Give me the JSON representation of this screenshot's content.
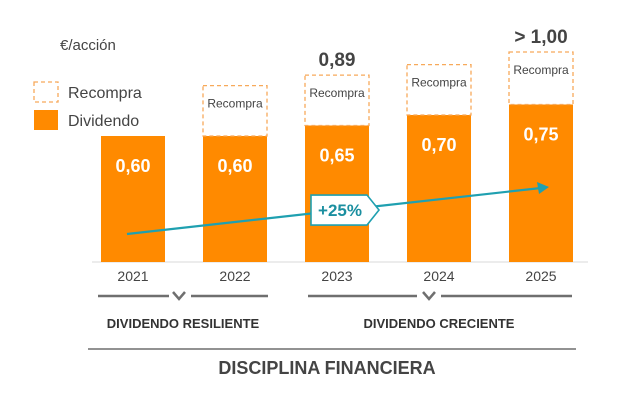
{
  "colors": {
    "dividend": "#ff8a00",
    "buyback_border": "#f7a95a",
    "trend": "#1fa0b0",
    "text": "#444444",
    "rule": "#6f6f6f"
  },
  "chart_data": {
    "type": "bar",
    "title": "",
    "unit_label": "€/acción",
    "categories": [
      "2021",
      "2022",
      "2023",
      "2024",
      "2025"
    ],
    "series": [
      {
        "name": "Dividendo",
        "values": [
          0.6,
          0.6,
          0.65,
          0.7,
          0.75
        ],
        "labels": [
          "0,60",
          "0,60",
          "0,65",
          "0,70",
          "0,75"
        ]
      },
      {
        "name": "Recompra",
        "values": [
          0,
          0.24,
          0.24,
          0.24,
          0.25
        ],
        "labels": [
          "",
          "Recompra",
          "Recompra",
          "Recompra",
          "Recompra"
        ]
      }
    ],
    "totals": [
      {
        "category": "2023",
        "label": "0,89"
      },
      {
        "category": "2025",
        "label": "> 1,00"
      }
    ],
    "ylim": [
      0,
      1.0
    ],
    "legend": {
      "position": "top-left",
      "entries": [
        "Recompra",
        "Dividendo"
      ]
    },
    "growth_annotation": "+25%",
    "groups": [
      {
        "label": "DIVIDENDO RESILIENTE",
        "categories": [
          "2021",
          "2022"
        ]
      },
      {
        "label": "DIVIDENDO CRECIENTE",
        "categories": [
          "2023",
          "2024",
          "2025"
        ]
      }
    ],
    "footer": "DISCIPLINA FINANCIERA"
  }
}
